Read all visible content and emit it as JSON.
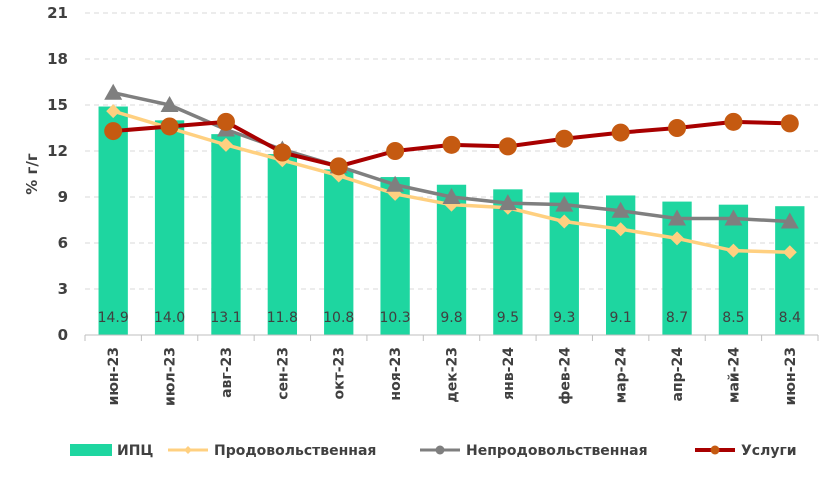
{
  "chart_data": {
    "type": "bar+line",
    "ylabel": "% г/г",
    "ylim": [
      0,
      21
    ],
    "yticks": [
      "0",
      "3",
      "6",
      "9",
      "12",
      "15",
      "18",
      "21"
    ],
    "categories": [
      "июн-23",
      "июл-23",
      "авг-23",
      "сен-23",
      "окт-23",
      "ноя-23",
      "дек-23",
      "янв-24",
      "фев-24",
      "мар-24",
      "апр-24",
      "май-24",
      "июн-23"
    ],
    "grid": "horizontal dashed",
    "legend_position": "bottom",
    "series": [
      {
        "name": "ИПЦ",
        "kind": "bar",
        "color": "#1ed6a0",
        "values": [
          14.9,
          14.0,
          13.1,
          11.8,
          10.8,
          10.3,
          9.8,
          9.5,
          9.3,
          9.1,
          8.7,
          8.5,
          8.4
        ],
        "labels": [
          "14.9",
          "14.0",
          "13.1",
          "11.8",
          "10.8",
          "10.3",
          "9.8",
          "9.5",
          "9.3",
          "9.1",
          "8.7",
          "8.5",
          "8.4"
        ]
      },
      {
        "name": "Продовольственная",
        "kind": "line",
        "color": "#ffd080",
        "marker": "diamond",
        "values": [
          14.6,
          13.5,
          12.4,
          11.4,
          10.4,
          9.2,
          8.5,
          8.3,
          7.4,
          6.9,
          6.3,
          5.5,
          5.4
        ]
      },
      {
        "name": "Непродовольственная",
        "kind": "line",
        "color": "#7f7f7f",
        "marker": "triangle",
        "values": [
          15.8,
          15.0,
          13.4,
          12.1,
          11.0,
          9.8,
          9.0,
          8.6,
          8.5,
          8.1,
          7.6,
          7.6,
          7.4
        ]
      },
      {
        "name": "Услуги",
        "kind": "line",
        "color": "#a80000",
        "marker": "circle",
        "marker_color": "#c55a11",
        "values": [
          13.3,
          13.6,
          13.9,
          11.9,
          11.0,
          12.0,
          12.4,
          12.3,
          12.8,
          13.2,
          13.5,
          13.9,
          13.8
        ]
      }
    ]
  }
}
